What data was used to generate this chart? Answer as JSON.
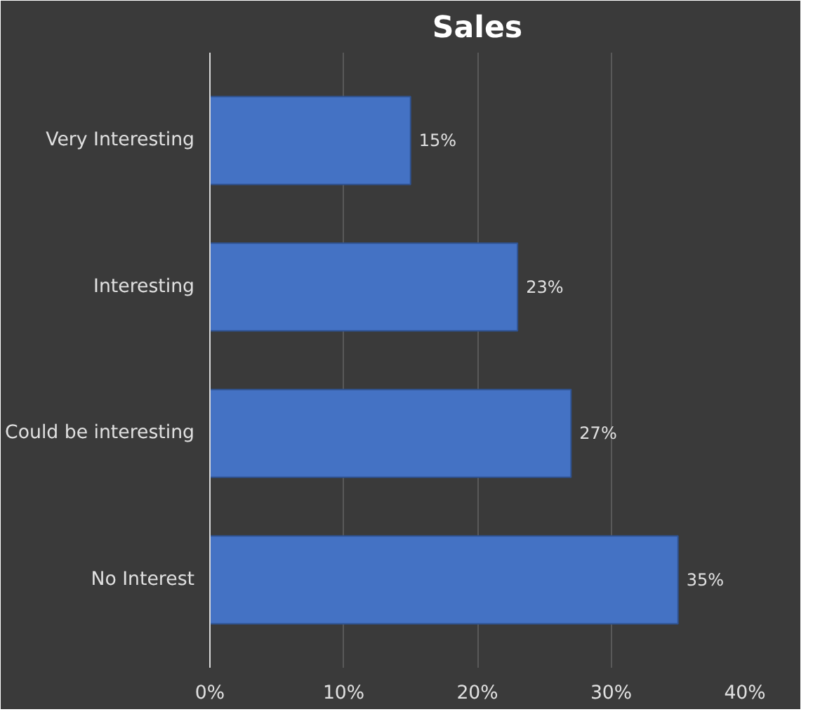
{
  "chart_data": {
    "type": "bar",
    "orientation": "horizontal",
    "title": "Sales",
    "categories": [
      "Very Interesting",
      "Interesting",
      "Could be interesting",
      "No Interest"
    ],
    "values": [
      15,
      23,
      27,
      35
    ],
    "color": "#4472c4",
    "value_labels": [
      "15%",
      "23%",
      "27%",
      "35%"
    ],
    "xlim": [
      0,
      40
    ],
    "xticks": [
      {
        "value": 0,
        "label": "0%"
      },
      {
        "value": 10,
        "label": "10%"
      },
      {
        "value": 20,
        "label": "20%"
      },
      {
        "value": 30,
        "label": "30%"
      },
      {
        "value": 40,
        "label": "40%"
      }
    ],
    "grid": "x"
  }
}
